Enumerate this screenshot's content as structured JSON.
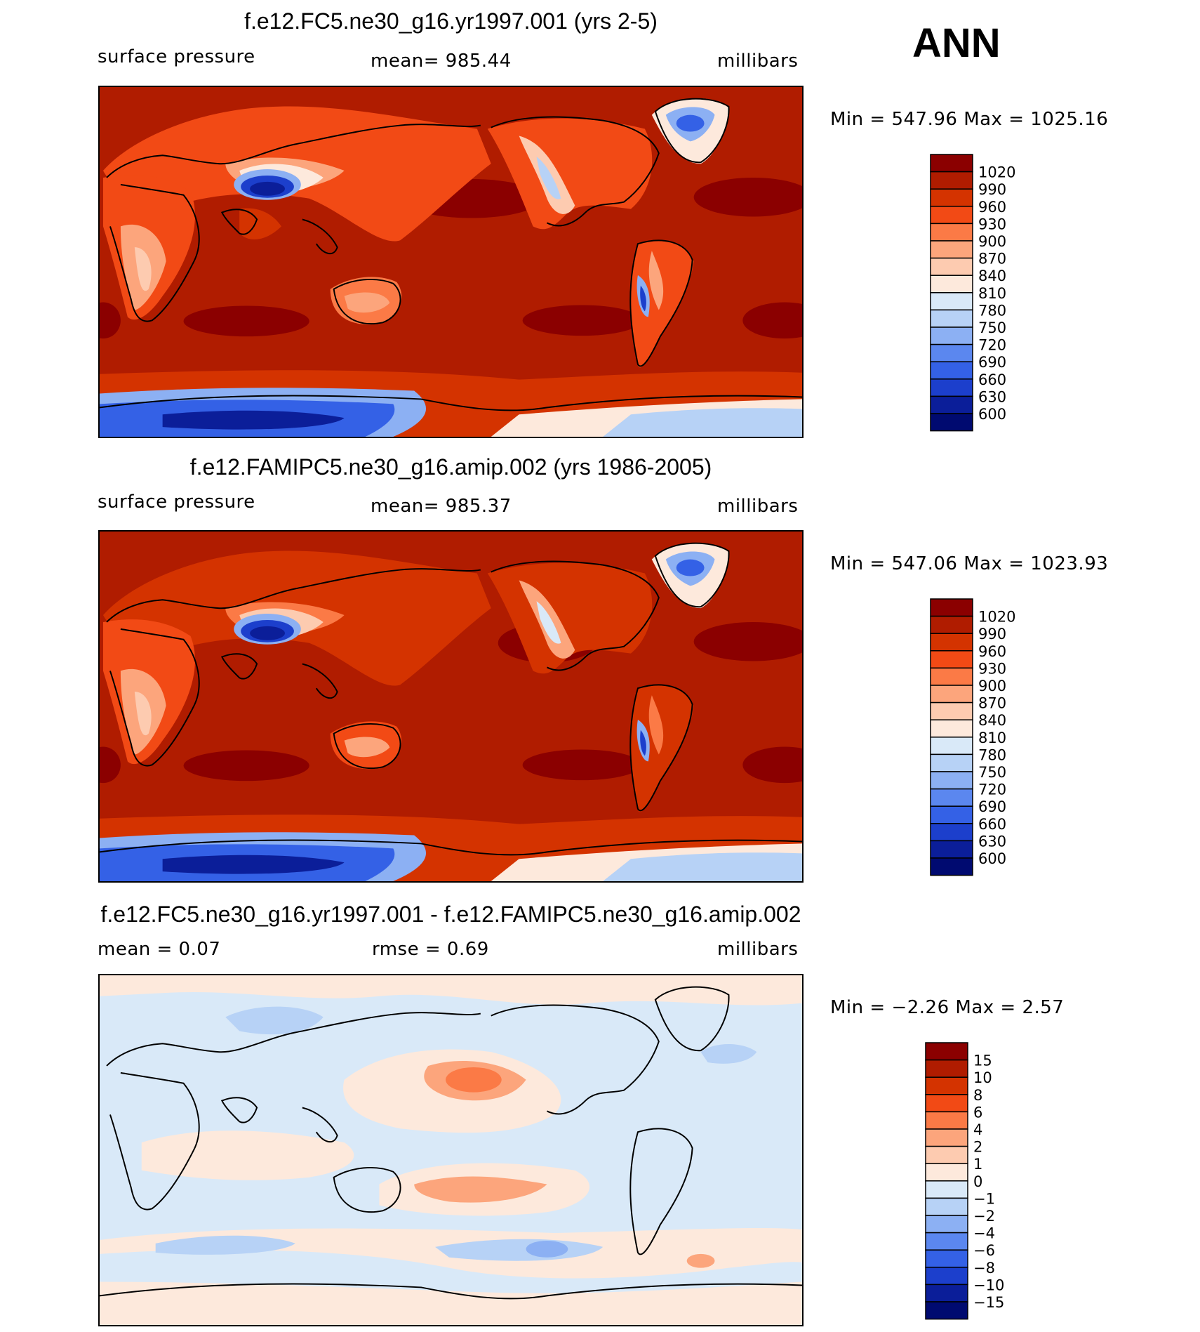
{
  "season": "ANN",
  "panels": [
    {
      "title": "f.e12.FC5.ne30_g16.yr1997.001 (yrs 2-5)",
      "left_label": "surface  pressure",
      "center_label": "mean=  985.44",
      "units": "millibars",
      "minmax": "Min  =  547.96  Max  =  1025.16",
      "colorbar": {
        "labels": [
          "1020",
          "990",
          "960",
          "930",
          "900",
          "870",
          "840",
          "810",
          "780",
          "750",
          "720",
          "690",
          "660",
          "630",
          "600"
        ],
        "colors": [
          "#8b0000",
          "#b01c00",
          "#d43300",
          "#f24a15",
          "#fb7a46",
          "#fca57c",
          "#fdcbb0",
          "#fde9dc",
          "#d9e9f8",
          "#b7d2f6",
          "#8cb0f3",
          "#5b87ef",
          "#3461e6",
          "#1c3fcc",
          "#0b1e99",
          "#000a70"
        ]
      }
    },
    {
      "title": "f.e12.FAMIPC5.ne30_g16.amip.002 (yrs 1986-2005)",
      "left_label": "surface  pressure",
      "center_label": "mean=  985.37",
      "units": "millibars",
      "minmax": "Min  =  547.06  Max  =  1023.93",
      "colorbar": {
        "labels": [
          "1020",
          "990",
          "960",
          "930",
          "900",
          "870",
          "840",
          "810",
          "780",
          "750",
          "720",
          "690",
          "660",
          "630",
          "600"
        ],
        "colors": [
          "#8b0000",
          "#b01c00",
          "#d43300",
          "#f24a15",
          "#fb7a46",
          "#fca57c",
          "#fdcbb0",
          "#fde9dc",
          "#d9e9f8",
          "#b7d2f6",
          "#8cb0f3",
          "#5b87ef",
          "#3461e6",
          "#1c3fcc",
          "#0b1e99",
          "#000a70"
        ]
      }
    },
    {
      "title": "f.e12.FC5.ne30_g16.yr1997.001 - f.e12.FAMIPC5.ne30_g16.amip.002",
      "left_label": "mean  =     0.07",
      "center_label": "rmse  =     0.69",
      "units": "millibars",
      "minmax": "Min  =   −2.26  Max  =     2.57",
      "colorbar": {
        "labels": [
          "15",
          "10",
          "8",
          "6",
          "4",
          "2",
          "1",
          "0",
          "−1",
          "−2",
          "−4",
          "−6",
          "−8",
          "−10",
          "−15"
        ],
        "colors": [
          "#8b0000",
          "#b01c00",
          "#d43300",
          "#f24a15",
          "#fb7a46",
          "#fca57c",
          "#fdcbb0",
          "#fde9dc",
          "#d9e9f8",
          "#b7d2f6",
          "#8cb0f3",
          "#5b87ef",
          "#3461e6",
          "#1c3fcc",
          "#0b1e99",
          "#000a70"
        ]
      }
    }
  ]
}
